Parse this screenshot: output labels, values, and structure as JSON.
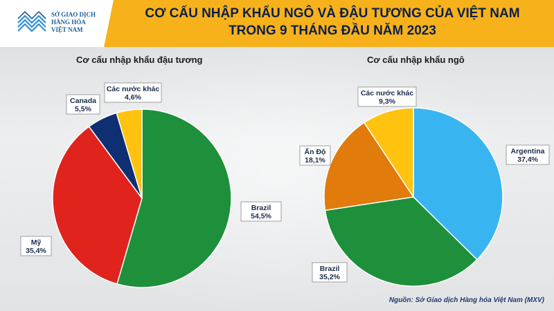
{
  "header": {
    "logo": {
      "line1": "SỞ GIAO DỊCH",
      "line2": "HÀNG HÓA",
      "line3": "VIỆT NAM"
    },
    "title_line1": "CƠ CẤU NHẬP KHẨU NGÔ VÀ ĐẬU TƯƠNG CỦA VIỆT NAM",
    "title_line2": "TRONG 9 THÁNG ĐẦU NĂM 2023"
  },
  "source": "Nguồn: Sở Giao dịch Hàng hóa Việt Nam (MXV)",
  "colors": {
    "header_bar": "#f7b21b",
    "title": "#0d1f4a"
  },
  "chart_data": [
    {
      "type": "pie",
      "title": "Cơ cấu nhập khẩu đậu tương",
      "slices": [
        {
          "label": "Brazil",
          "value": 54.5,
          "value_label": "54,5%",
          "color": "#1e8f3a"
        },
        {
          "label": "Mỹ",
          "value": 35.4,
          "value_label": "35,4%",
          "color": "#e0231c"
        },
        {
          "label": "Canada",
          "value": 5.5,
          "value_label": "5,5%",
          "color": "#0f2f73"
        },
        {
          "label": "Các nước khác",
          "value": 4.6,
          "value_label": "4,6%",
          "color": "#ffc20e"
        }
      ]
    },
    {
      "type": "pie",
      "title": "Cơ cấu nhập khẩu ngô",
      "slices": [
        {
          "label": "Argentina",
          "value": 37.4,
          "value_label": "37,4%",
          "color": "#38b5f0"
        },
        {
          "label": "Brazil",
          "value": 35.2,
          "value_label": "35,2%",
          "color": "#1e8f3a"
        },
        {
          "label": "Ấn Độ",
          "value": 18.1,
          "value_label": "18,1%",
          "color": "#e07b0c"
        },
        {
          "label": "Các nước khác",
          "value": 9.3,
          "value_label": "9,3%",
          "color": "#ffc20e"
        }
      ]
    }
  ]
}
